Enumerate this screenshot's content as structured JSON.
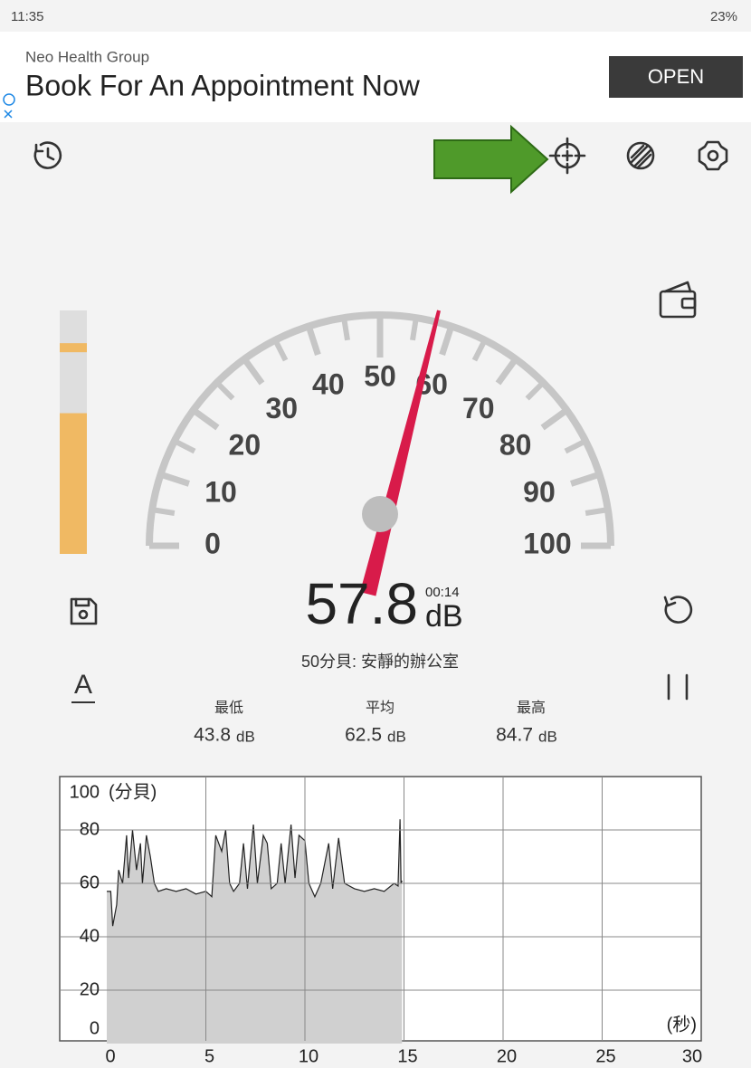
{
  "status": {
    "time": "11:35",
    "battery": "23%"
  },
  "ad": {
    "sponsor": "Neo Health Group",
    "headline": "Book For An Appointment Now",
    "button": "OPEN"
  },
  "meter": {
    "ticks": [
      0,
      10,
      20,
      30,
      40,
      50,
      60,
      70,
      80,
      90,
      100
    ],
    "value": 57.8,
    "unit": "dB",
    "elapsed": "00:14",
    "description": "50分貝: 安靜的辦公室",
    "mode": "A"
  },
  "stats": [
    {
      "label": "最低",
      "value": 43.8,
      "unit": "dB"
    },
    {
      "label": "平均",
      "value": 62.5,
      "unit": "dB"
    },
    {
      "label": "最高",
      "value": 84.7,
      "unit": "dB"
    }
  ],
  "chart_data": {
    "type": "area",
    "ylabel": "(分貝)",
    "xlabel": "(秒)",
    "color": "#d0d0d0",
    "x": [
      0,
      0.2,
      0.3,
      0.5,
      0.6,
      0.8,
      1.0,
      1.1,
      1.3,
      1.5,
      1.7,
      1.8,
      2.0,
      2.2,
      2.4,
      2.6,
      3.0,
      3.5,
      4.0,
      4.5,
      5.0,
      5.3,
      5.5,
      5.8,
      6.0,
      6.2,
      6.4,
      6.7,
      6.9,
      7.1,
      7.4,
      7.6,
      7.9,
      8.1,
      8.3,
      8.6,
      8.8,
      9.0,
      9.3,
      9.5,
      9.7,
      10.0,
      10.2,
      10.5,
      10.8,
      11.2,
      11.4,
      11.7,
      12.0,
      12.5,
      13.0,
      13.5,
      14.0,
      14.5,
      14.7,
      14.8,
      14.85,
      14.9
    ],
    "values": [
      57,
      57,
      44,
      52,
      65,
      60,
      78,
      62,
      80,
      65,
      75,
      60,
      78,
      70,
      60,
      57,
      58,
      57,
      58,
      56,
      57,
      55,
      78,
      72,
      80,
      60,
      57,
      60,
      75,
      58,
      82,
      60,
      78,
      75,
      58,
      60,
      75,
      60,
      82,
      62,
      78,
      76,
      60,
      55,
      60,
      75,
      58,
      77,
      60,
      58,
      57,
      58,
      57,
      60,
      59,
      84,
      60,
      61
    ],
    "xlim": [
      0,
      30
    ],
    "xticks": [
      0,
      5,
      10,
      15,
      20,
      25,
      30
    ],
    "ylim": [
      0,
      100
    ],
    "yticks": [
      0,
      20,
      40,
      60,
      80,
      100
    ],
    "grid": true
  }
}
